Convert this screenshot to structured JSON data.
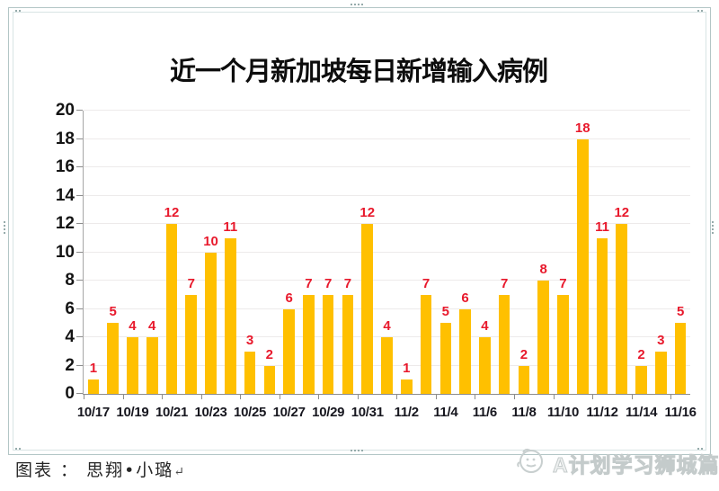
{
  "title": "近一个月新加坡每日新增输入病例",
  "footer": {
    "text": "图表 ： 思翔•小璐",
    "return_mark": "↵"
  },
  "watermark": {
    "text": "A计划学习狮城篇",
    "icon": "smiley-face-logo"
  },
  "colors": {
    "bar": "#FFC000",
    "data_label": "#E8192C",
    "axis_text": "#141414",
    "gridline": "#EDEAEA",
    "axis_line": "#8D8D8D",
    "frame": "#B3C6C6"
  },
  "chart_data": {
    "type": "bar",
    "title": "近一个月新加坡每日新增输入病例",
    "categories": [
      "10/17",
      "10/18",
      "10/19",
      "10/20",
      "10/21",
      "10/22",
      "10/23",
      "10/24",
      "10/25",
      "10/26",
      "10/27",
      "10/28",
      "10/29",
      "10/30",
      "10/31",
      "11/1",
      "11/2",
      "11/3",
      "11/4",
      "11/5",
      "11/6",
      "11/7",
      "11/8",
      "11/9",
      "11/10",
      "11/11",
      "11/12",
      "11/13",
      "11/14",
      "11/15",
      "11/16"
    ],
    "values": [
      1,
      5,
      4,
      4,
      12,
      7,
      10,
      11,
      3,
      2,
      6,
      7,
      7,
      7,
      12,
      4,
      1,
      7,
      5,
      6,
      4,
      7,
      2,
      8,
      7,
      18,
      11,
      12,
      2,
      3,
      5
    ],
    "x_tick_labels": [
      "10/17",
      "10/19",
      "10/21",
      "10/23",
      "10/25",
      "10/27",
      "10/29",
      "10/31",
      "11/2",
      "11/4",
      "11/6",
      "11/8",
      "11/10",
      "11/12",
      "11/14",
      "11/16"
    ],
    "x_label_interval": 2,
    "xlabel": "",
    "ylabel": "",
    "ylim": [
      0,
      20
    ],
    "ytick_step": 2,
    "grid": true,
    "legend": "none",
    "data_labels": true,
    "bar_color": "#FFC000",
    "data_label_color": "#E8192C"
  }
}
